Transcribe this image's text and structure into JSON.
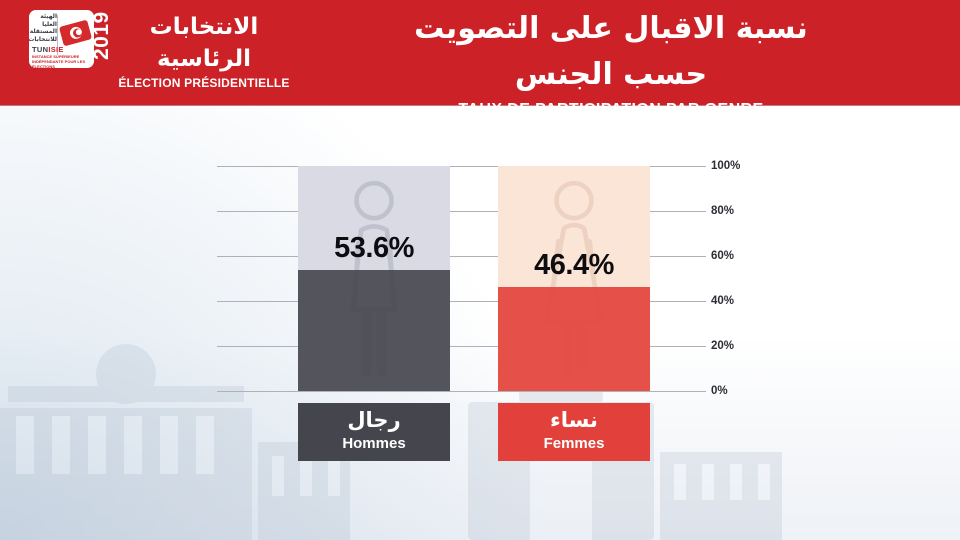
{
  "header": {
    "logo": {
      "org_lines_ar": [
        "الهيئة",
        "العليا",
        "المستقلة",
        "للانتخابات"
      ],
      "brand_prefix": "TUN",
      "brand_accent": "ISIE",
      "org_fr": "INSTANCE SUPÉRIEURE INDÉPENDANTE POUR LES ÉLECTIONS"
    },
    "year": "2019",
    "event_title_ar": "الانتخابات الرئاسية",
    "event_title_fr": "ÉLECTION PRÉSIDENTIELLE",
    "page_title_ar": "نسبة الاقبال على التصويت حسب الجنس",
    "page_title_fr": "TAUX DE PARTICIPATION PAR GENRE"
  },
  "chart_data": {
    "type": "bar",
    "title_ar": "نسبة الاقبال على التصويت حسب الجنس",
    "title_fr": "TAUX DE PARTICIPATION PAR GENRE",
    "categories": [
      "Hommes",
      "Femmes"
    ],
    "categories_ar": [
      "رجال",
      "نساء"
    ],
    "values": [
      53.6,
      46.4
    ],
    "value_labels": [
      "53.6%",
      "46.4%"
    ],
    "ticks": [
      "100%",
      "80%",
      "60%",
      "40%",
      "20%",
      "0%"
    ],
    "ylim": [
      0,
      100
    ],
    "grid": true,
    "legend": "none",
    "colors": {
      "banner_red": "#cc2127",
      "men_fill": "#45454d",
      "men_track": "#d9dae3",
      "women_fill": "#e2403a",
      "women_track": "#fbe5d7"
    }
  }
}
